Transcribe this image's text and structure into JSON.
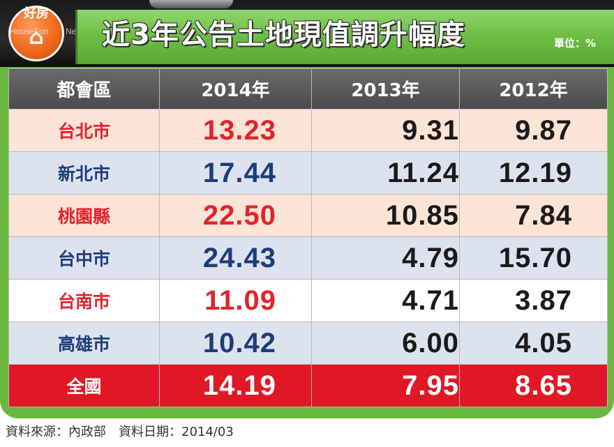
{
  "header": {
    "title": "近3年公告土地現值調升幅度",
    "unit": "單位：%",
    "logo": {
      "zh": "好房",
      "en": "HouseFun",
      "news": "News",
      "icon": "house-icon"
    }
  },
  "colors": {
    "frame": "#6ab83f",
    "header_row": "#555555",
    "total_row": "#e01825",
    "pink_row": "#fbe3d6",
    "blue_row": "#dde2ef",
    "red_text": "#e0242c",
    "navy_text": "#1d3d7a"
  },
  "footer": "資料來源：內政部　資料日期：2014/03",
  "chart_data": {
    "type": "table",
    "columns": [
      "都會區",
      "2014年",
      "2013年",
      "2012年"
    ],
    "rows": [
      {
        "region": "台北市",
        "v2014": "13.23",
        "v2013": "9.31",
        "v2012": "9.87"
      },
      {
        "region": "新北市",
        "v2014": "17.44",
        "v2013": "11.24",
        "v2012": "12.19"
      },
      {
        "region": "桃園縣",
        "v2014": "22.50",
        "v2013": "10.85",
        "v2012": "7.84"
      },
      {
        "region": "台中市",
        "v2014": "24.43",
        "v2013": "4.79",
        "v2012": "15.70"
      },
      {
        "region": "台南市",
        "v2014": "11.09",
        "v2013": "4.71",
        "v2012": "3.87"
      },
      {
        "region": "高雄市",
        "v2014": "10.42",
        "v2013": "6.00",
        "v2012": "4.05"
      },
      {
        "region": "全國",
        "v2014": "14.19",
        "v2013": "7.95",
        "v2012": "8.65"
      }
    ]
  }
}
